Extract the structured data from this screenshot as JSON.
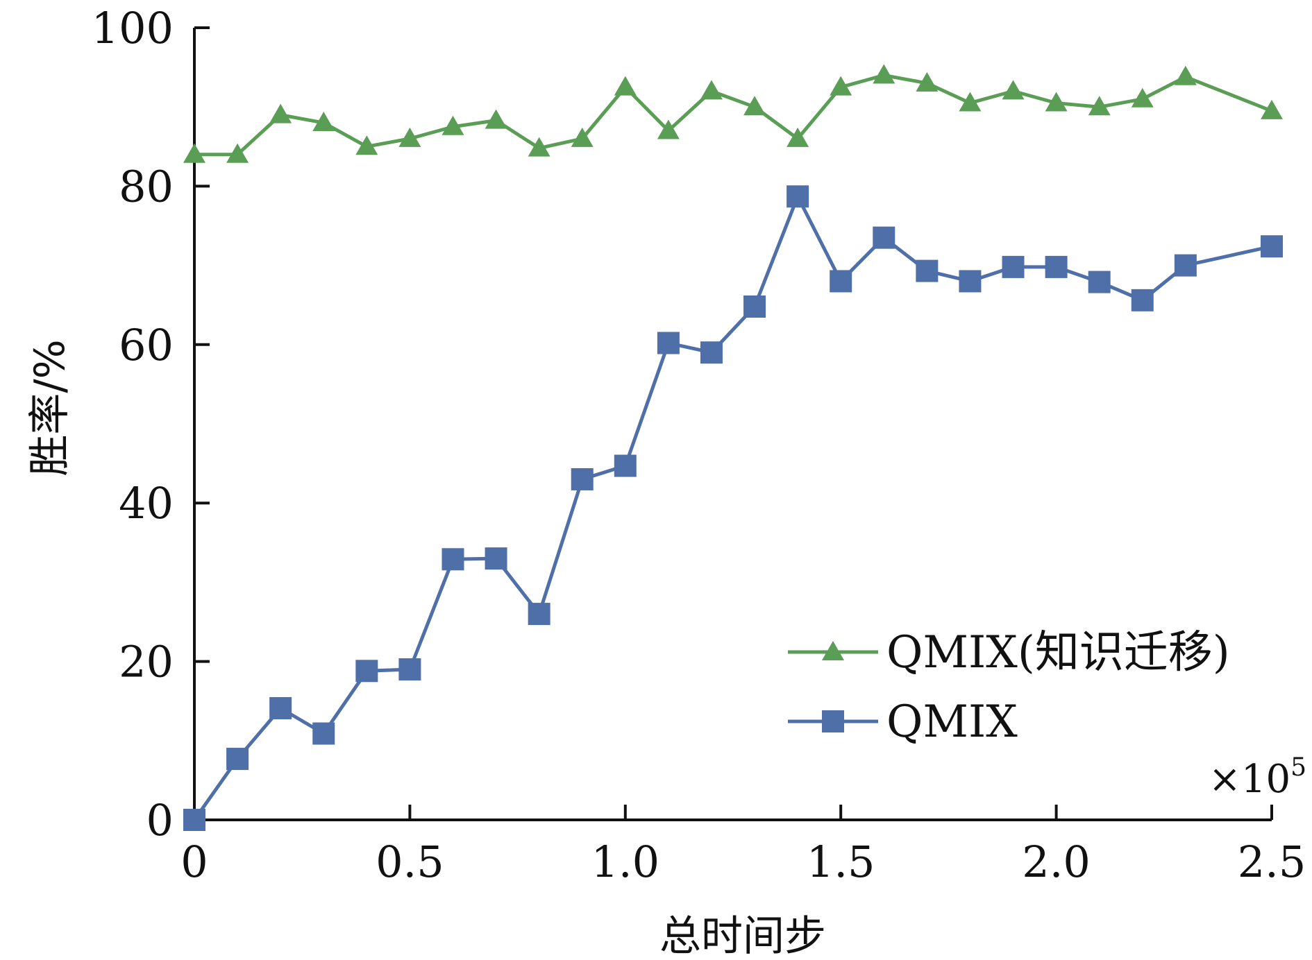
{
  "chart_data": {
    "type": "line",
    "title": "",
    "xlabel": "总时间步",
    "ylabel": "胜率/%",
    "x_multiplier_label": "×10",
    "x_multiplier_exp": "5",
    "xlim": [
      0,
      2.5
    ],
    "ylim": [
      0,
      100
    ],
    "x_ticks": [
      0,
      0.5,
      1.0,
      1.5,
      2.0,
      2.5
    ],
    "x_tick_labels": [
      "0",
      "0.5",
      "1.0",
      "1.5",
      "2.0",
      "2.5"
    ],
    "y_ticks": [
      0,
      20,
      40,
      60,
      80,
      100
    ],
    "y_tick_labels": [
      "0",
      "20",
      "40",
      "60",
      "80",
      "100"
    ],
    "x": [
      0,
      0.1,
      0.2,
      0.3,
      0.4,
      0.5,
      0.6,
      0.7,
      0.8,
      0.9,
      1.0,
      1.1,
      1.2,
      1.3,
      1.4,
      1.5,
      1.6,
      1.7,
      1.8,
      1.9,
      2.0,
      2.1,
      2.2,
      2.3,
      2.5
    ],
    "series": [
      {
        "name": "QMIX(知识迁移)",
        "color": "#5a9e55",
        "marker": "triangle",
        "values": [
          84,
          84,
          89,
          88,
          85,
          86,
          87.5,
          88.3,
          84.8,
          86,
          92.5,
          87,
          92,
          90,
          86,
          92.5,
          94,
          93,
          90.5,
          92,
          90.5,
          90,
          91,
          93.8,
          89.5
        ]
      },
      {
        "name": "QMIX",
        "color": "#4f6fa8",
        "marker": "square",
        "values": [
          0,
          7.7,
          14.1,
          10.9,
          18.8,
          19,
          32.9,
          33,
          26,
          43,
          44.7,
          60.2,
          59,
          64.8,
          78.7,
          68,
          73.5,
          69.3,
          68,
          69.8,
          69.8,
          67.9,
          65.6,
          70,
          72.4
        ]
      }
    ],
    "legend_position": "lower-right"
  }
}
